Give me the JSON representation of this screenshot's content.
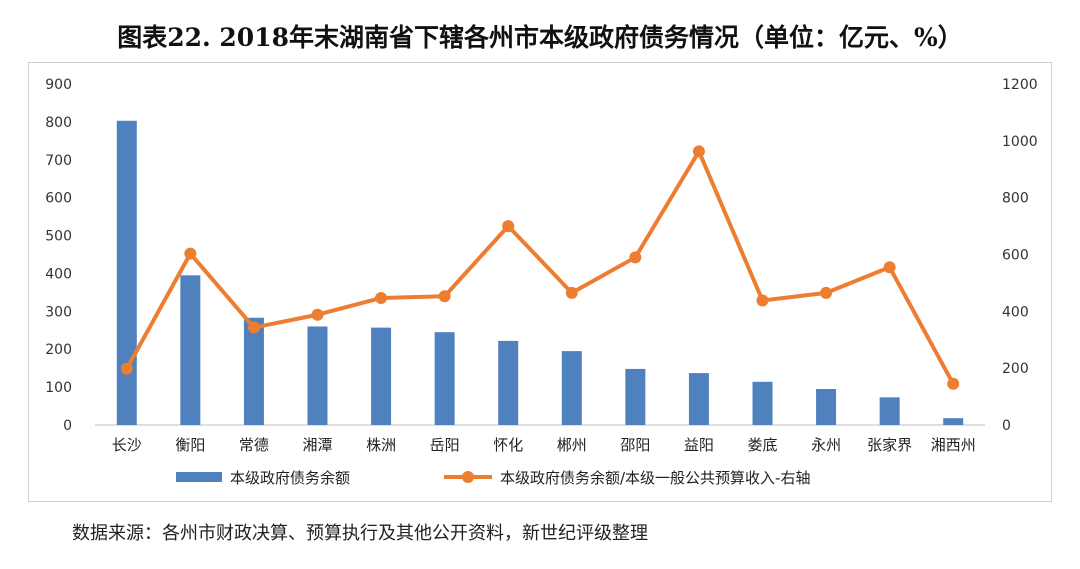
{
  "title": "图表22.   2018年末湖南省下辖各州市本级政府债务情况（单位：亿元、%）",
  "source": "数据来源：各州市财政决算、预算执行及其他公开资料，新世纪评级整理",
  "chart_data": {
    "type": "bar",
    "categories": [
      "长沙",
      "衡阳",
      "常德",
      "湘潭",
      "株洲",
      "岳阳",
      "怀化",
      "郴州",
      "邵阳",
      "益阳",
      "娄底",
      "永州",
      "张家界",
      "湘西州"
    ],
    "series": [
      {
        "name": "本级政府债务余额",
        "type": "bar",
        "axis": "left",
        "color": "#4E81BD",
        "values": [
          803,
          395,
          283,
          260,
          257,
          245,
          222,
          195,
          148,
          137,
          114,
          95,
          73,
          18
        ]
      },
      {
        "name": "本级政府债务余额/本级一般公共预算收入-右轴",
        "type": "line",
        "axis": "right",
        "color": "#ED7D31",
        "values": [
          198,
          603,
          343,
          388,
          447,
          453,
          700,
          465,
          590,
          963,
          438,
          465,
          555,
          145
        ]
      }
    ],
    "y_left": {
      "min": 0,
      "max": 900,
      "ticks": [
        0,
        100,
        200,
        300,
        400,
        500,
        600,
        700,
        800,
        900
      ]
    },
    "y_right": {
      "min": 0,
      "max": 1200,
      "ticks": [
        0,
        200,
        400,
        600,
        800,
        1000,
        1200
      ]
    },
    "grid": false,
    "legend": "bottom"
  }
}
